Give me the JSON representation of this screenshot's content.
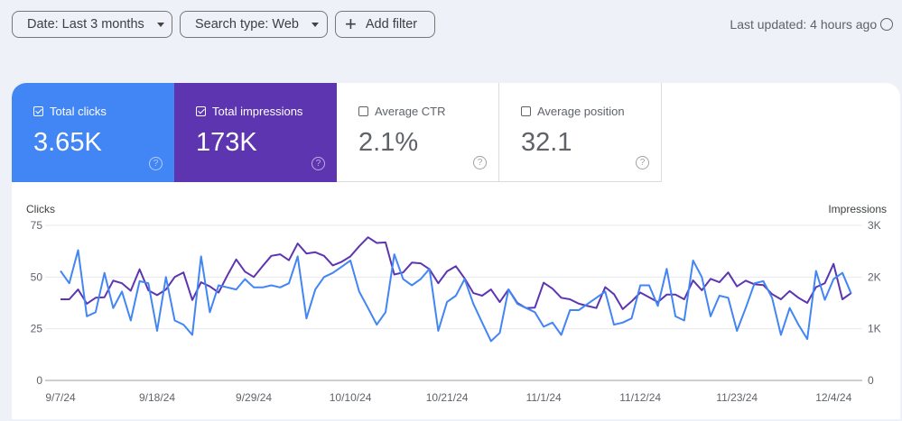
{
  "filters": {
    "date_label": "Date: Last 3 months",
    "search_type_label": "Search type: Web",
    "add_filter_label": "Add filter"
  },
  "last_updated": "Last updated: 4 hours ago",
  "metrics": [
    {
      "label": "Total clicks",
      "value": "3.65K",
      "checked": true,
      "color": "#4285f4"
    },
    {
      "label": "Total impressions",
      "value": "173K",
      "checked": true,
      "color": "#5e35b1"
    },
    {
      "label": "Average CTR",
      "value": "2.1%",
      "checked": false
    },
    {
      "label": "Average position",
      "value": "32.1",
      "checked": false
    }
  ],
  "chart_data": {
    "type": "line",
    "left_axis_label": "Clicks",
    "right_axis_label": "Impressions",
    "left_ylim": [
      0,
      75
    ],
    "right_ylim": [
      0,
      3000
    ],
    "left_ticks": [
      "0",
      "25",
      "50",
      "75"
    ],
    "right_ticks": [
      "0",
      "1K",
      "2K",
      "3K"
    ],
    "x_tick_labels": [
      "9/7/24",
      "9/18/24",
      "9/29/24",
      "10/10/24",
      "10/21/24",
      "11/1/24",
      "11/12/24",
      "11/23/24",
      "12/4/24"
    ],
    "grid": true,
    "x": [
      "9/7/24",
      "9/8/24",
      "9/9/24",
      "9/10/24",
      "9/11/24",
      "9/12/24",
      "9/13/24",
      "9/14/24",
      "9/15/24",
      "9/16/24",
      "9/17/24",
      "9/18/24",
      "9/19/24",
      "9/20/24",
      "9/21/24",
      "9/22/24",
      "9/23/24",
      "9/24/24",
      "9/25/24",
      "9/26/24",
      "9/27/24",
      "9/28/24",
      "9/29/24",
      "9/30/24",
      "10/1/24",
      "10/2/24",
      "10/3/24",
      "10/4/24",
      "10/5/24",
      "10/6/24",
      "10/7/24",
      "10/8/24",
      "10/9/24",
      "10/10/24",
      "10/11/24",
      "10/12/24",
      "10/13/24",
      "10/14/24",
      "10/15/24",
      "10/16/24",
      "10/17/24",
      "10/18/24",
      "10/19/24",
      "10/20/24",
      "10/21/24",
      "10/22/24",
      "10/23/24",
      "10/24/24",
      "10/25/24",
      "10/26/24",
      "10/27/24",
      "10/28/24",
      "10/29/24",
      "10/30/24",
      "10/31/24",
      "11/1/24",
      "11/2/24",
      "11/3/24",
      "11/4/24",
      "11/5/24",
      "11/6/24",
      "11/7/24",
      "11/8/24",
      "11/9/24",
      "11/10/24",
      "11/11/24",
      "11/12/24",
      "11/13/24",
      "11/14/24",
      "11/15/24",
      "11/16/24",
      "11/17/24",
      "11/18/24",
      "11/19/24",
      "11/20/24",
      "11/21/24",
      "11/22/24",
      "11/23/24",
      "11/24/24",
      "11/25/24",
      "11/26/24",
      "11/27/24",
      "11/28/24",
      "11/29/24",
      "11/30/24",
      "12/1/24",
      "12/2/24",
      "12/3/24",
      "12/4/24",
      "12/5/24",
      "12/6/24"
    ],
    "series": [
      {
        "name": "Clicks",
        "axis": "left",
        "color": "#4285f4",
        "values": [
          53,
          47,
          63,
          31,
          33,
          52,
          35,
          43,
          29,
          48,
          47,
          24,
          50,
          29,
          27,
          22,
          60,
          33,
          46,
          45,
          44,
          49,
          45,
          45,
          46,
          45,
          47,
          60,
          30,
          44,
          50,
          52,
          55,
          58,
          43,
          35,
          27,
          33,
          61,
          49,
          46,
          49,
          54,
          24,
          38,
          41,
          49,
          37,
          28,
          19,
          23,
          44,
          37,
          35,
          33,
          26,
          28,
          22,
          34,
          34,
          37,
          40,
          43,
          27,
          28,
          30,
          46,
          46,
          36,
          54,
          31,
          29,
          58,
          50,
          31,
          41,
          40,
          24,
          35,
          47,
          48,
          40,
          22,
          35,
          27,
          20,
          53,
          39,
          49,
          52,
          42
        ]
      },
      {
        "name": "Impressions",
        "axis": "right",
        "color": "#5e35b1",
        "values": [
          1570,
          1570,
          1760,
          1485,
          1600,
          1610,
          1930,
          1880,
          1735,
          2150,
          1745,
          1650,
          1760,
          2000,
          2090,
          1555,
          1900,
          1820,
          1700,
          2035,
          2340,
          2105,
          2000,
          2210,
          2410,
          2440,
          2325,
          2650,
          2455,
          2480,
          2410,
          2225,
          2295,
          2400,
          2595,
          2770,
          2660,
          2670,
          2050,
          2090,
          2280,
          2265,
          2150,
          1880,
          2110,
          2210,
          1975,
          1690,
          1640,
          1760,
          1515,
          1760,
          1500,
          1400,
          1410,
          1890,
          1775,
          1600,
          1570,
          1485,
          1440,
          1400,
          1805,
          1670,
          1380,
          1530,
          1700,
          1610,
          1515,
          1660,
          1660,
          1570,
          1935,
          1745,
          1965,
          1900,
          2090,
          1820,
          1930,
          1860,
          1845,
          1670,
          1570,
          1730,
          1600,
          1500,
          1805,
          1880,
          2255,
          1570,
          1690
        ]
      }
    ]
  }
}
